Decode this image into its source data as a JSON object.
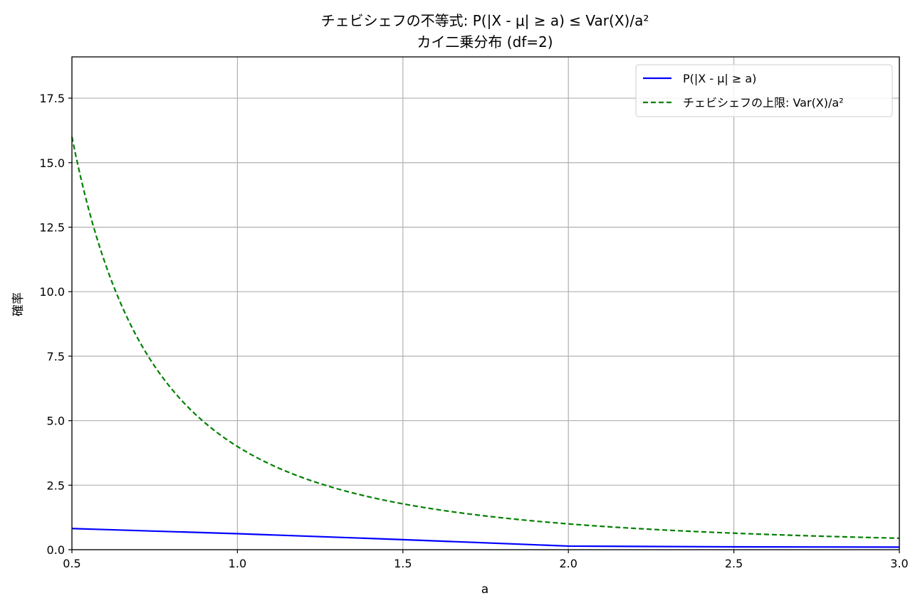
{
  "chart_data": {
    "type": "line",
    "title": "チェビシェフの不等式: P(|X - μ| ≥ a) ≤ Var(X)/a²",
    "subtitle": "カイ二乗分布 (df=2)",
    "xlabel": "a",
    "ylabel": "確率",
    "xlim": [
      0.5,
      3.0
    ],
    "ylim": [
      0,
      19.1
    ],
    "xticks": [
      0.5,
      1.0,
      1.5,
      2.0,
      2.5,
      3.0
    ],
    "xtick_labels": [
      "0.5",
      "1.0",
      "1.5",
      "2.0",
      "2.5",
      "3.0"
    ],
    "yticks": [
      0,
      2.5,
      5,
      7.5,
      10,
      12.5,
      15,
      17.5
    ],
    "ytick_labels": [
      "0.0",
      "2.5",
      "5.0",
      "7.5",
      "10.0",
      "12.5",
      "15.0",
      "17.5"
    ],
    "grid": true,
    "legend_position": "top-right",
    "series": [
      {
        "name": "P(|X - μ| ≥ a)",
        "color": "#0000ff",
        "style": "solid",
        "x": [
          0.5,
          1.0,
          1.5,
          2.0,
          2.5,
          3.0
        ],
        "y": [
          0.82,
          0.62,
          0.39,
          0.14,
          0.11,
          0.1
        ]
      },
      {
        "name": "チェビシェフの上限: Var(X)/a²",
        "color": "#008000",
        "style": "dashed",
        "formula": "4/a^2",
        "x": [
          0.5,
          0.75,
          1.0,
          1.25,
          1.5,
          1.75,
          2.0,
          2.25,
          2.5,
          2.75,
          3.0
        ],
        "y": [
          16.0,
          7.11,
          4.0,
          2.56,
          1.78,
          1.31,
          1.0,
          0.79,
          0.64,
          0.53,
          0.44
        ]
      }
    ]
  }
}
